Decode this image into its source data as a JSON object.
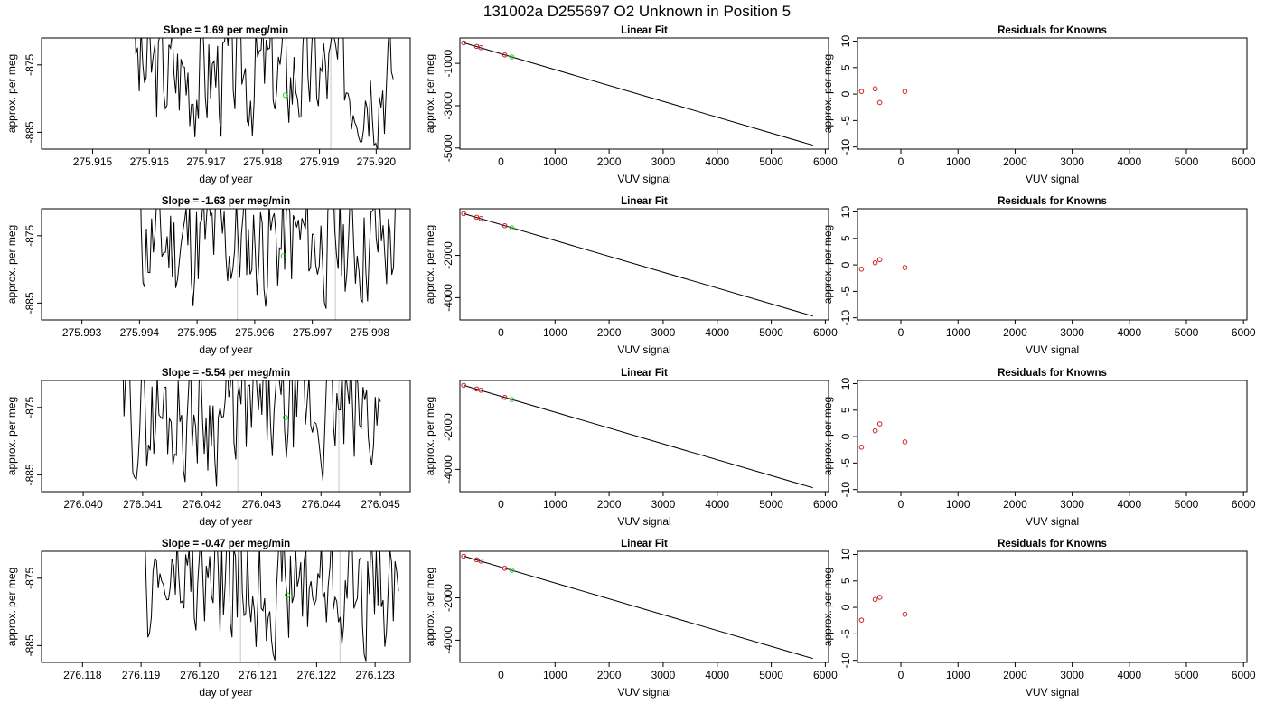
{
  "figure_title": "131002a      D255697   O2 Unknown in Position  5",
  "colors": {
    "trace": "#000000",
    "known_point": "#cc2222",
    "unknown_point": "#22cc22",
    "cycle_marker": "#c8c8c8"
  },
  "chart_data": [
    {
      "type": "line",
      "title": "Slope =  1.69  per meg/min",
      "xlabel": "day of year",
      "ylabel": "approx. per meg",
      "xlim": [
        275.9141,
        275.9206
      ],
      "ylim": [
        -887.5,
        -871
      ],
      "xticks": [
        "275.915",
        "275.916",
        "275.917",
        "275.918",
        "275.919",
        "275.920"
      ],
      "xtick_values": [
        275.915,
        275.916,
        275.917,
        275.918,
        275.919,
        275.92
      ],
      "yticks": [
        "-875",
        "-885"
      ],
      "ytick_values": [
        -875,
        -885
      ],
      "trace_x_range": [
        275.9157,
        275.9203
      ],
      "marker_x": [
        275.9192
      ],
      "unknown_point": [
        275.9184,
        -879.5
      ],
      "seed": 3
    },
    {
      "type": "scatter",
      "title": "Linear Fit",
      "xlabel": "VUV signal",
      "ylabel": "approx. per meg",
      "xlim": [
        -760,
        6060
      ],
      "ylim": [
        -5050,
        200
      ],
      "xticks": [
        "0",
        "1000",
        "2000",
        "3000",
        "4000",
        "5000",
        "6000"
      ],
      "xtick_values": [
        0,
        1000,
        2000,
        3000,
        4000,
        5000,
        6000
      ],
      "yticks": [
        "-1000",
        "-3000",
        "-5000"
      ],
      "ytick_values": [
        -1000,
        -3000,
        -5000
      ],
      "known_x": [
        -690,
        -450,
        -370,
        70
      ],
      "known_y": [
        -30,
        -200,
        -260,
        -600
      ],
      "unknown_x": [
        200
      ],
      "unknown_y": [
        -700
      ],
      "fit_line": [
        [
          -690,
          -30
        ],
        [
          5770,
          -4870
        ]
      ]
    },
    {
      "type": "scatter",
      "title": "Residuals for Knowns",
      "xlabel": "VUV signal",
      "ylabel": "approx. per meg",
      "xlim": [
        -760,
        6060
      ],
      "ylim": [
        -10.4,
        10.6
      ],
      "xticks": [
        "0",
        "1000",
        "2000",
        "3000",
        "4000",
        "5000",
        "6000"
      ],
      "xtick_values": [
        0,
        1000,
        2000,
        3000,
        4000,
        5000,
        6000
      ],
      "yticks": [
        "-10",
        "-5",
        "0",
        "5",
        "10"
      ],
      "ytick_values": [
        -10,
        -5,
        0,
        5,
        10
      ],
      "known_x": [
        -690,
        -450,
        -370,
        70
      ],
      "known_y": [
        0.5,
        1.0,
        -1.6,
        0.5
      ]
    },
    {
      "type": "line",
      "title": "Slope =  -1.63  per meg/min",
      "xlabel": "day of year",
      "ylabel": "approx. per meg",
      "xlim": [
        275.9923,
        275.9987
      ],
      "ylim": [
        -887.5,
        -871
      ],
      "xticks": [
        "275.993",
        "275.994",
        "275.995",
        "275.996",
        "275.997",
        "275.998"
      ],
      "xtick_values": [
        275.993,
        275.994,
        275.995,
        275.996,
        275.997,
        275.998
      ],
      "yticks": [
        "-875",
        "-885"
      ],
      "ytick_values": [
        -875,
        -885
      ],
      "trace_x_range": [
        275.994,
        275.9985
      ],
      "marker_x": [
        275.9957,
        275.9974
      ],
      "unknown_point": [
        275.9965,
        -878.0
      ],
      "seed": 11
    },
    {
      "type": "scatter",
      "title": "Linear Fit",
      "xlabel": "VUV signal",
      "ylabel": "approx. per meg",
      "xlim": [
        -760,
        6060
      ],
      "ylim": [
        -5050,
        200
      ],
      "xticks": [
        "0",
        "1000",
        "2000",
        "3000",
        "4000",
        "5000",
        "6000"
      ],
      "xtick_values": [
        0,
        1000,
        2000,
        3000,
        4000,
        5000,
        6000
      ],
      "yticks": [
        "-2000",
        "-4000"
      ],
      "ytick_values": [
        -2000,
        -4000
      ],
      "known_x": [
        -690,
        -450,
        -370,
        70
      ],
      "known_y": [
        -30,
        -200,
        -260,
        -600
      ],
      "unknown_x": [
        200
      ],
      "unknown_y": [
        -700
      ],
      "fit_line": [
        [
          -690,
          -30
        ],
        [
          5770,
          -4870
        ]
      ]
    },
    {
      "type": "scatter",
      "title": "Residuals for Knowns",
      "xlabel": "VUV signal",
      "ylabel": "approx. per meg",
      "xlim": [
        -760,
        6060
      ],
      "ylim": [
        -10.4,
        10.6
      ],
      "xticks": [
        "0",
        "1000",
        "2000",
        "3000",
        "4000",
        "5000",
        "6000"
      ],
      "xtick_values": [
        0,
        1000,
        2000,
        3000,
        4000,
        5000,
        6000
      ],
      "yticks": [
        "-10",
        "-5",
        "0",
        "5",
        "10"
      ],
      "ytick_values": [
        -10,
        -5,
        0,
        5,
        10
      ],
      "known_x": [
        -690,
        -450,
        -370,
        70
      ],
      "known_y": [
        -0.8,
        0.4,
        1.0,
        -0.5
      ]
    },
    {
      "type": "line",
      "title": "Slope =  -5.54  per meg/min",
      "xlabel": "day of year",
      "ylabel": "approx. per meg",
      "xlim": [
        276.0393,
        276.0455
      ],
      "ylim": [
        -887.5,
        -871
      ],
      "xticks": [
        "276.040",
        "276.041",
        "276.042",
        "276.043",
        "276.044",
        "276.045"
      ],
      "xtick_values": [
        276.04,
        276.041,
        276.042,
        276.043,
        276.044,
        276.045
      ],
      "yticks": [
        "-875",
        "-885"
      ],
      "ytick_values": [
        -875,
        -885
      ],
      "trace_x_range": [
        276.0406,
        276.045
      ],
      "marker_x": [
        276.0426,
        276.0443
      ],
      "unknown_point": [
        276.0434,
        -876.5
      ],
      "seed": 29
    },
    {
      "type": "scatter",
      "title": "Linear Fit",
      "xlabel": "VUV signal",
      "ylabel": "approx. per meg",
      "xlim": [
        -760,
        6060
      ],
      "ylim": [
        -5050,
        200
      ],
      "xticks": [
        "0",
        "1000",
        "2000",
        "3000",
        "4000",
        "5000",
        "6000"
      ],
      "xtick_values": [
        0,
        1000,
        2000,
        3000,
        4000,
        5000,
        6000
      ],
      "yticks": [
        "-2000",
        "-4000"
      ],
      "ytick_values": [
        -2000,
        -4000
      ],
      "known_x": [
        -690,
        -450,
        -370,
        70
      ],
      "known_y": [
        -30,
        -200,
        -260,
        -600
      ],
      "unknown_x": [
        200
      ],
      "unknown_y": [
        -700
      ],
      "fit_line": [
        [
          -690,
          -30
        ],
        [
          5770,
          -4870
        ]
      ]
    },
    {
      "type": "scatter",
      "title": "Residuals for Knowns",
      "xlabel": "VUV signal",
      "ylabel": "approx. per meg",
      "xlim": [
        -760,
        6060
      ],
      "ylim": [
        -10.4,
        10.6
      ],
      "xticks": [
        "0",
        "1000",
        "2000",
        "3000",
        "4000",
        "5000",
        "6000"
      ],
      "xtick_values": [
        0,
        1000,
        2000,
        3000,
        4000,
        5000,
        6000
      ],
      "yticks": [
        "-10",
        "-5",
        "0",
        "5",
        "10"
      ],
      "ytick_values": [
        -10,
        -5,
        0,
        5,
        10
      ],
      "known_x": [
        -690,
        -450,
        -370,
        70
      ],
      "known_y": [
        -2.0,
        1.1,
        2.4,
        -1.0
      ]
    },
    {
      "type": "line",
      "title": "Slope =  -0.47  per meg/min",
      "xlabel": "day of year",
      "ylabel": "approx. per meg",
      "xlim": [
        276.1173,
        276.1236
      ],
      "ylim": [
        -887.5,
        -871
      ],
      "xticks": [
        "276.118",
        "276.119",
        "276.120",
        "276.121",
        "276.122",
        "276.123"
      ],
      "xtick_values": [
        276.118,
        276.119,
        276.12,
        276.121,
        276.122,
        276.123
      ],
      "yticks": [
        "-875",
        "-885"
      ],
      "ytick_values": [
        -875,
        -885
      ],
      "trace_x_range": [
        276.119,
        276.1234
      ],
      "marker_x": [
        276.1207,
        276.1224
      ],
      "unknown_point": [
        276.1215,
        -877.5
      ],
      "seed": 47
    },
    {
      "type": "scatter",
      "title": "Linear Fit",
      "xlabel": "VUV signal",
      "ylabel": "approx. per meg",
      "xlim": [
        -760,
        6060
      ],
      "ylim": [
        -5050,
        200
      ],
      "xticks": [
        "0",
        "1000",
        "2000",
        "3000",
        "4000",
        "5000",
        "6000"
      ],
      "xtick_values": [
        0,
        1000,
        2000,
        3000,
        4000,
        5000,
        6000
      ],
      "yticks": [
        "-2000",
        "-4000"
      ],
      "ytick_values": [
        -2000,
        -4000
      ],
      "known_x": [
        -690,
        -450,
        -370,
        70
      ],
      "known_y": [
        -30,
        -200,
        -260,
        -600
      ],
      "unknown_x": [
        200
      ],
      "unknown_y": [
        -700
      ],
      "fit_line": [
        [
          -690,
          -30
        ],
        [
          5770,
          -4870
        ]
      ]
    },
    {
      "type": "scatter",
      "title": "Residuals for Knowns",
      "xlabel": "VUV signal",
      "ylabel": "approx. per meg",
      "xlim": [
        -760,
        6060
      ],
      "ylim": [
        -10.4,
        10.6
      ],
      "xticks": [
        "0",
        "1000",
        "2000",
        "3000",
        "4000",
        "5000",
        "6000"
      ],
      "xtick_values": [
        0,
        1000,
        2000,
        3000,
        4000,
        5000,
        6000
      ],
      "yticks": [
        "-10",
        "-5",
        "0",
        "5",
        "10"
      ],
      "ytick_values": [
        -10,
        -5,
        0,
        5,
        10
      ],
      "known_x": [
        -690,
        -450,
        -370,
        70
      ],
      "known_y": [
        -2.4,
        1.5,
        1.9,
        -1.3
      ]
    }
  ]
}
